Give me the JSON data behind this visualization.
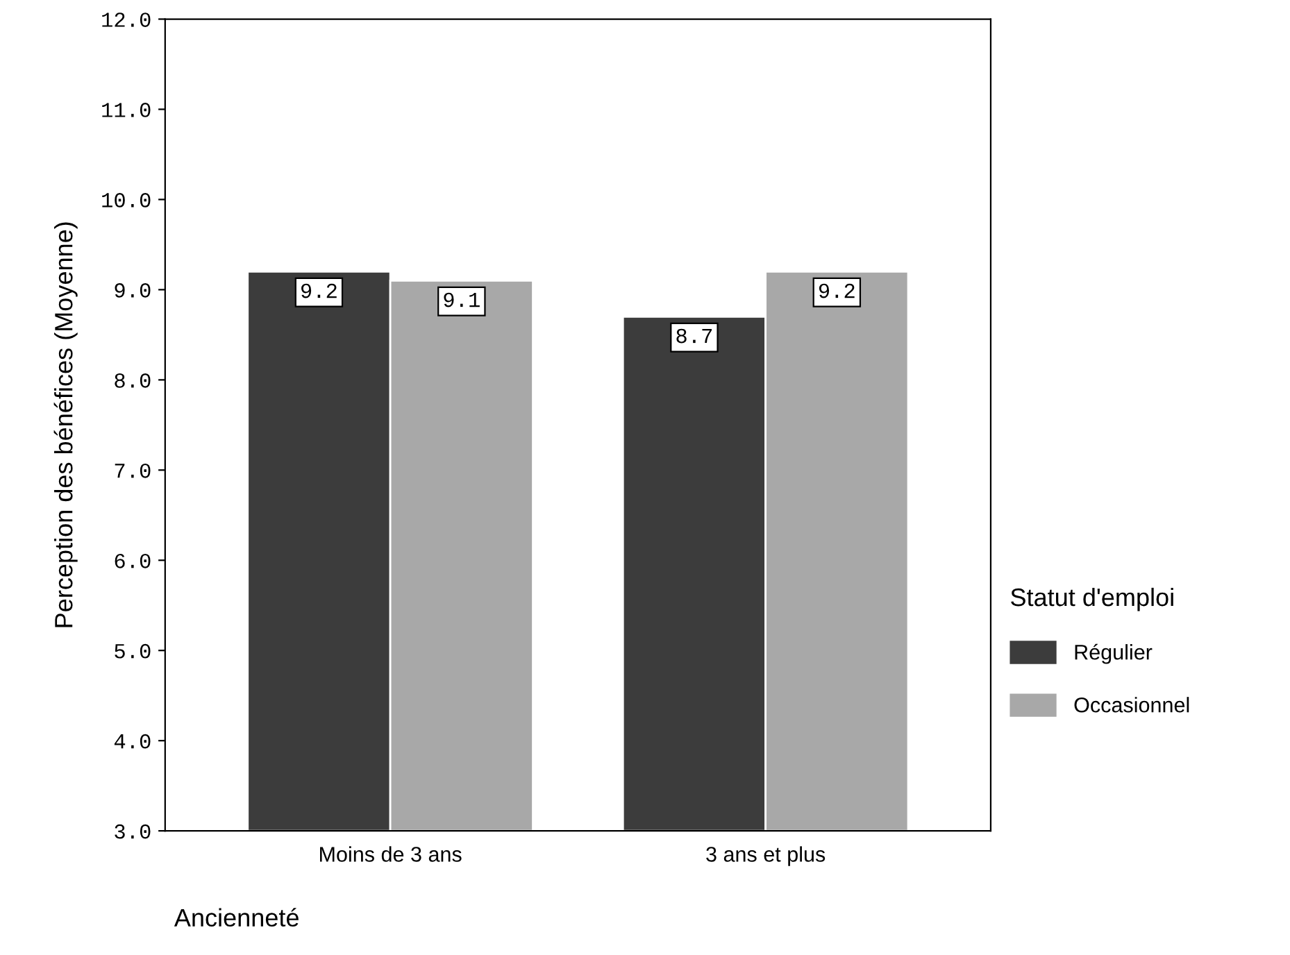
{
  "chart_data": {
    "type": "bar",
    "xlabel": "Ancienneté",
    "ylabel": "Perception des bénéfices (Moyenne)",
    "legend_title": "Statut d'emploi",
    "categories": [
      "Moins de 3 ans",
      "3 ans et plus"
    ],
    "series": [
      {
        "name": "Régulier",
        "color": "#3c3c3c",
        "values": [
          9.2,
          8.7
        ]
      },
      {
        "name": "Occasionnel",
        "color": "#a8a8a8",
        "values": [
          9.1,
          9.2
        ]
      }
    ],
    "ylim": [
      3,
      12
    ],
    "yticks": [
      {
        "value": 3,
        "label": "3.0"
      },
      {
        "value": 4,
        "label": "4.0"
      },
      {
        "value": 5,
        "label": "5.0"
      },
      {
        "value": 6,
        "label": "6.0"
      },
      {
        "value": 7,
        "label": "7.0"
      },
      {
        "value": 8,
        "label": "8.0"
      },
      {
        "value": 9,
        "label": "9.0"
      },
      {
        "value": 10,
        "label": "10.0"
      },
      {
        "value": 11,
        "label": "11.0"
      },
      {
        "value": 12,
        "label": "12.0"
      }
    ],
    "data_labels": true,
    "grid": false,
    "legend": "right"
  }
}
